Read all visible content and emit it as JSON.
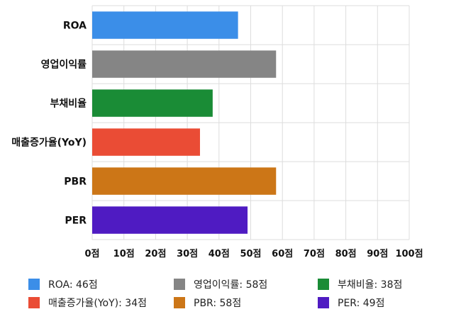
{
  "chart_data": {
    "type": "bar",
    "orientation": "horizontal",
    "categories": [
      "ROA",
      "영업이익률",
      "부채비율",
      "매출증가율(YoY)",
      "PBR",
      "PER"
    ],
    "values": [
      46,
      58,
      38,
      34,
      58,
      49
    ],
    "colors": [
      "#3b8ee8",
      "#858585",
      "#1a8c36",
      "#ea4c35",
      "#cc7617",
      "#4f1bc2"
    ],
    "tick_labels": [
      "0점",
      "10점",
      "20점",
      "30점",
      "40점",
      "50점",
      "60점",
      "70점",
      "80점",
      "90점",
      "100점"
    ],
    "xlim": [
      0,
      100
    ],
    "grid": true,
    "legend_position": "bottom",
    "legend": [
      "ROA: 46점",
      "매출증가율(YoY): 34점",
      "영업이익률: 58점",
      "PBR: 58점",
      "부채비율: 38점",
      "PER: 49점"
    ],
    "legend_colors": [
      "#3b8ee8",
      "#ea4c35",
      "#858585",
      "#cc7617",
      "#1a8c36",
      "#4f1bc2"
    ]
  }
}
